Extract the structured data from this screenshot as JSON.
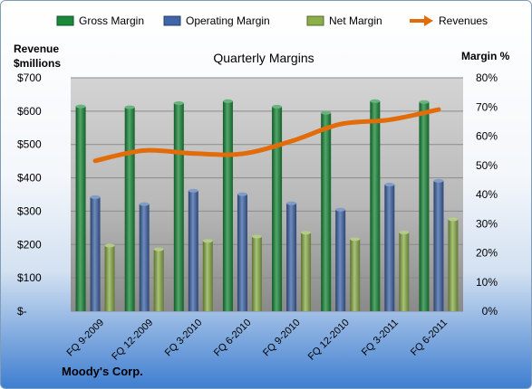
{
  "company": "Moody's Corp.",
  "chart_data": {
    "type": "bar",
    "title": "Quarterly Margins",
    "left_axis_label": [
      "Revenue",
      "$millions"
    ],
    "right_axis_label": "Margin %",
    "categories": [
      "FQ 9-2009",
      "FQ 12-2009",
      "FQ 3-2010",
      "FQ 6-2010",
      "FQ 9-2010",
      "FQ 12-2010",
      "FQ 3-2011",
      "FQ 6-2011"
    ],
    "left_ticks": [
      "$-",
      "$100",
      "$200",
      "$300",
      "$400",
      "$500",
      "$600",
      "$700"
    ],
    "right_ticks": [
      "0%",
      "10%",
      "20%",
      "30%",
      "40%",
      "50%",
      "60%",
      "70%",
      "80%"
    ],
    "ylim_left": [
      0,
      700
    ],
    "ylim_right": [
      0,
      80
    ],
    "series": [
      {
        "name": "Gross Margin",
        "axis": "right",
        "kind": "bar",
        "color": "#1a8a3a",
        "values": [
          70.2,
          69.9,
          71.3,
          72.0,
          70.1,
          68.0,
          72.0,
          71.7
        ]
      },
      {
        "name": "Operating Margin",
        "axis": "right",
        "kind": "bar",
        "color": "#3f66a8",
        "values": [
          39.1,
          36.7,
          41.3,
          40.1,
          37.0,
          34.8,
          43.4,
          44.7
        ]
      },
      {
        "name": "Net Margin",
        "axis": "right",
        "kind": "bar",
        "color": "#8caf4a",
        "values": [
          22.5,
          21.2,
          24.1,
          25.6,
          26.9,
          24.7,
          27.0,
          31.5
        ]
      },
      {
        "name": "Revenues",
        "axis": "left",
        "kind": "line",
        "color": "#e36c0a",
        "values": [
          451,
          482,
          473,
          472,
          510,
          561,
          574,
          605
        ]
      }
    ],
    "grid": true,
    "legend_position": "top"
  }
}
